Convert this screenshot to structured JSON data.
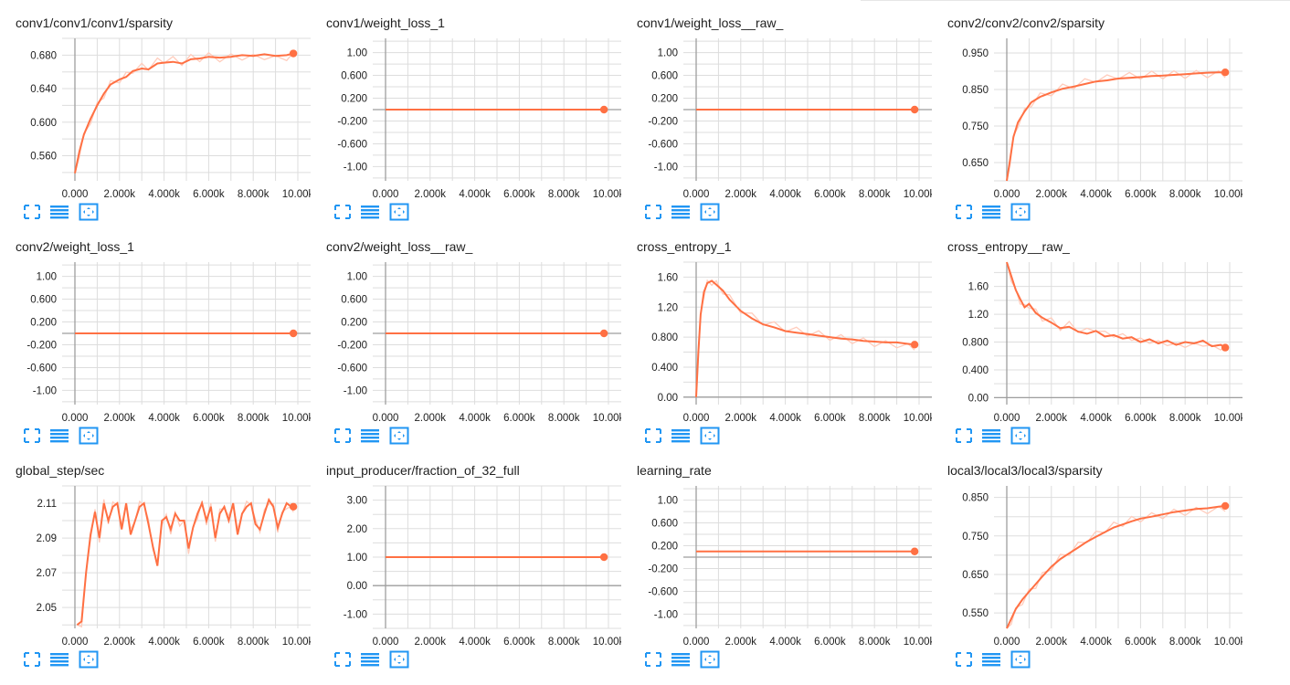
{
  "colors": {
    "accent": "#ff7043",
    "smoothed": "#ff7043",
    "raw": "#ffccbc",
    "grid": "#dddddd",
    "axis": "#9e9e9e",
    "icon": "#2196f3"
  },
  "toolbar_icons": [
    "expand-icon",
    "data-table-icon",
    "fit-domain-icon"
  ],
  "x_ticks": [
    "0.000",
    "2.000k",
    "4.000k",
    "6.000k",
    "8.000k",
    "10.00k"
  ],
  "cards": [
    {
      "title": "conv1/conv1/conv1/sparsity",
      "chart_data": {
        "type": "line",
        "xlim": [
          0,
          10000
        ],
        "ylim": [
          0.53,
          0.7
        ],
        "y_ticks": [
          0.56,
          0.6,
          0.64,
          0.68
        ],
        "y_labels": [
          "0.560",
          "0.600",
          "0.640",
          "0.680"
        ],
        "x_ticks": [
          0,
          2000,
          4000,
          6000,
          8000,
          10000
        ],
        "series": [
          {
            "x": [
              0,
              200,
              400,
              700,
              1000,
              1300,
              1600,
              2000,
              2300,
              2600,
              3000,
              3300,
              3700,
              4000,
              4400,
              4800,
              5200,
              5600,
              6000,
              6500,
              7000,
              7500,
              8000,
              8500,
              9000,
              9500,
              9800
            ],
            "y": [
              0.539,
              0.565,
              0.585,
              0.604,
              0.62,
              0.634,
              0.645,
              0.651,
              0.654,
              0.661,
              0.664,
              0.663,
              0.67,
              0.671,
              0.672,
              0.67,
              0.675,
              0.676,
              0.678,
              0.677,
              0.678,
              0.68,
              0.679,
              0.681,
              0.679,
              0.68,
              0.682
            ]
          }
        ]
      }
    },
    {
      "title": "conv1/weight_loss_1",
      "chart_data": {
        "type": "line",
        "xlim": [
          0,
          10000
        ],
        "ylim": [
          -1.25,
          1.25
        ],
        "y_ticks": [
          1.0,
          0.6,
          0.2,
          -0.2,
          -0.6,
          -1.0
        ],
        "y_labels": [
          "1.00",
          "0.600",
          "0.200",
          "-0.200",
          "-0.600",
          "-1.00"
        ],
        "x_ticks": [
          0,
          2000,
          4000,
          6000,
          8000,
          10000
        ],
        "series": [
          {
            "x": [
              0,
              9800
            ],
            "y": [
              0,
              0
            ]
          }
        ]
      }
    },
    {
      "title": "conv1/weight_loss__raw_",
      "chart_data": {
        "type": "line",
        "xlim": [
          0,
          10000
        ],
        "ylim": [
          -1.25,
          1.25
        ],
        "y_ticks": [
          1.0,
          0.6,
          0.2,
          -0.2,
          -0.6,
          -1.0
        ],
        "y_labels": [
          "1.00",
          "0.600",
          "0.200",
          "-0.200",
          "-0.600",
          "-1.00"
        ],
        "x_ticks": [
          0,
          2000,
          4000,
          6000,
          8000,
          10000
        ],
        "series": [
          {
            "x": [
              0,
              9800
            ],
            "y": [
              0,
              0
            ]
          }
        ]
      }
    },
    {
      "title": "conv2/conv2/conv2/sparsity",
      "chart_data": {
        "type": "line",
        "xlim": [
          0,
          10000
        ],
        "ylim": [
          0.6,
          0.99
        ],
        "y_ticks": [
          0.65,
          0.75,
          0.85,
          0.95
        ],
        "y_labels": [
          "0.650",
          "0.750",
          "0.850",
          "0.950"
        ],
        "x_ticks": [
          0,
          2000,
          4000,
          6000,
          8000,
          10000
        ],
        "series": [
          {
            "x": [
              0,
              150,
              300,
              500,
              800,
              1100,
              1500,
              2000,
              2500,
              3000,
              3500,
              4000,
              4500,
              5000,
              5500,
              6000,
              6500,
              7000,
              7500,
              8000,
              8500,
              9000,
              9500,
              9800
            ],
            "y": [
              0.6,
              0.66,
              0.72,
              0.76,
              0.79,
              0.815,
              0.83,
              0.842,
              0.852,
              0.858,
              0.865,
              0.872,
              0.875,
              0.88,
              0.882,
              0.884,
              0.887,
              0.888,
              0.89,
              0.892,
              0.894,
              0.896,
              0.897,
              0.897
            ]
          }
        ]
      }
    },
    {
      "title": "conv2/weight_loss_1",
      "chart_data": {
        "type": "line",
        "xlim": [
          0,
          10000
        ],
        "ylim": [
          -1.25,
          1.25
        ],
        "y_ticks": [
          1.0,
          0.6,
          0.2,
          -0.2,
          -0.6,
          -1.0
        ],
        "y_labels": [
          "1.00",
          "0.600",
          "0.200",
          "-0.200",
          "-0.600",
          "-1.00"
        ],
        "x_ticks": [
          0,
          2000,
          4000,
          6000,
          8000,
          10000
        ],
        "series": [
          {
            "x": [
              0,
              9800
            ],
            "y": [
              0,
              0
            ]
          }
        ]
      }
    },
    {
      "title": "conv2/weight_loss__raw_",
      "chart_data": {
        "type": "line",
        "xlim": [
          0,
          10000
        ],
        "ylim": [
          -1.25,
          1.25
        ],
        "y_ticks": [
          1.0,
          0.6,
          0.2,
          -0.2,
          -0.6,
          -1.0
        ],
        "y_labels": [
          "1.00",
          "0.600",
          "0.200",
          "-0.200",
          "-0.600",
          "-1.00"
        ],
        "x_ticks": [
          0,
          2000,
          4000,
          6000,
          8000,
          10000
        ],
        "series": [
          {
            "x": [
              0,
              9800
            ],
            "y": [
              0,
              0
            ]
          }
        ]
      }
    },
    {
      "title": "cross_entropy_1",
      "chart_data": {
        "type": "line",
        "xlim": [
          0,
          10000
        ],
        "ylim": [
          -0.1,
          1.8
        ],
        "y_ticks": [
          0.0,
          0.4,
          0.8,
          1.2,
          1.6
        ],
        "y_labels": [
          "0.00",
          "0.400",
          "0.800",
          "1.20",
          "1.60"
        ],
        "x_ticks": [
          0,
          2000,
          4000,
          6000,
          8000,
          10000
        ],
        "series": [
          {
            "x": [
              0,
              100,
              200,
              350,
              500,
              700,
              900,
              1200,
              1500,
              2000,
              2500,
              3000,
              3500,
              4000,
              4500,
              5000,
              5500,
              6000,
              6500,
              7000,
              7500,
              8000,
              8500,
              9000,
              9500,
              9800
            ],
            "y": [
              0.0,
              0.6,
              1.1,
              1.4,
              1.52,
              1.55,
              1.5,
              1.42,
              1.3,
              1.15,
              1.05,
              0.97,
              0.93,
              0.88,
              0.86,
              0.84,
              0.82,
              0.8,
              0.78,
              0.77,
              0.75,
              0.74,
              0.73,
              0.73,
              0.71,
              0.7
            ]
          }
        ]
      }
    },
    {
      "title": "cross_entropy__raw_",
      "chart_data": {
        "type": "line",
        "xlim": [
          0,
          10000
        ],
        "ylim": [
          -0.1,
          1.95
        ],
        "y_ticks": [
          0.0,
          0.4,
          0.8,
          1.2,
          1.6
        ],
        "y_labels": [
          "0.00",
          "0.400",
          "0.800",
          "1.20",
          "1.60"
        ],
        "x_ticks": [
          0,
          2000,
          4000,
          6000,
          8000,
          10000
        ],
        "series": [
          {
            "x": [
              0,
              200,
              400,
              600,
              800,
              1000,
              1300,
              1600,
              2000,
              2400,
              2800,
              3200,
              3600,
              4000,
              4400,
              4800,
              5200,
              5600,
              6000,
              6400,
              6800,
              7200,
              7600,
              8000,
              8400,
              8800,
              9200,
              9600,
              9800
            ],
            "y": [
              1.95,
              1.75,
              1.55,
              1.42,
              1.3,
              1.35,
              1.22,
              1.15,
              1.08,
              1.0,
              1.02,
              0.95,
              0.92,
              0.96,
              0.88,
              0.9,
              0.85,
              0.87,
              0.8,
              0.84,
              0.78,
              0.82,
              0.76,
              0.8,
              0.78,
              0.82,
              0.74,
              0.76,
              0.72
            ]
          }
        ]
      }
    },
    {
      "title": "global_step/sec",
      "chart_data": {
        "type": "line",
        "xlim": [
          0,
          10000
        ],
        "ylim": [
          2.038,
          2.12
        ],
        "y_ticks": [
          2.05,
          2.07,
          2.09,
          2.11
        ],
        "y_labels": [
          "2.05",
          "2.07",
          "2.09",
          "2.11"
        ],
        "x_ticks": [
          0,
          2000,
          4000,
          6000,
          8000,
          10000
        ],
        "series": [
          {
            "x": [
              100,
              300,
              500,
              700,
              900,
              1100,
              1300,
              1500,
              1700,
              1900,
              2100,
              2300,
              2500,
              2700,
              2900,
              3100,
              3300,
              3500,
              3700,
              3900,
              4100,
              4300,
              4500,
              4700,
              4900,
              5100,
              5300,
              5500,
              5700,
              5900,
              6100,
              6300,
              6500,
              6700,
              6900,
              7100,
              7300,
              7500,
              7700,
              7900,
              8100,
              8300,
              8500,
              8700,
              8900,
              9100,
              9300,
              9500,
              9700,
              9800
            ],
            "y": [
              2.04,
              2.042,
              2.07,
              2.092,
              2.105,
              2.09,
              2.11,
              2.1,
              2.108,
              2.11,
              2.095,
              2.11,
              2.092,
              2.1,
              2.108,
              2.11,
              2.098,
              2.085,
              2.074,
              2.1,
              2.102,
              2.095,
              2.104,
              2.1,
              2.1,
              2.084,
              2.096,
              2.104,
              2.11,
              2.1,
              2.108,
              2.09,
              2.104,
              2.108,
              2.1,
              2.11,
              2.092,
              2.104,
              2.108,
              2.11,
              2.098,
              2.095,
              2.104,
              2.112,
              2.108,
              2.096,
              2.104,
              2.11,
              2.108,
              2.108
            ]
          }
        ]
      }
    },
    {
      "title": "input_producer/fraction_of_32_full",
      "chart_data": {
        "type": "line",
        "xlim": [
          0,
          10000
        ],
        "ylim": [
          -1.5,
          3.5
        ],
        "y_ticks": [
          3.0,
          2.0,
          1.0,
          0.0,
          -1.0
        ],
        "y_labels": [
          "3.00",
          "2.00",
          "1.00",
          "0.00",
          "-1.00"
        ],
        "x_ticks": [
          0,
          2000,
          4000,
          6000,
          8000,
          10000
        ],
        "series": [
          {
            "x": [
              0,
              9800
            ],
            "y": [
              1.0,
              1.0
            ]
          }
        ]
      }
    },
    {
      "title": "learning_rate",
      "chart_data": {
        "type": "line",
        "xlim": [
          0,
          10000
        ],
        "ylim": [
          -1.25,
          1.25
        ],
        "y_ticks": [
          1.0,
          0.6,
          0.2,
          -0.2,
          -0.6,
          -1.0
        ],
        "y_labels": [
          "1.00",
          "0.600",
          "0.200",
          "-0.200",
          "-0.600",
          "-1.00"
        ],
        "x_ticks": [
          0,
          2000,
          4000,
          6000,
          8000,
          10000
        ],
        "series": [
          {
            "x": [
              0,
              9800
            ],
            "y": [
              0.1,
              0.1
            ]
          }
        ]
      }
    },
    {
      "title": "local3/local3/local3/sparsity",
      "chart_data": {
        "type": "line",
        "xlim": [
          0,
          10000
        ],
        "ylim": [
          0.51,
          0.88
        ],
        "y_ticks": [
          0.55,
          0.65,
          0.75,
          0.85
        ],
        "y_labels": [
          "0.550",
          "0.650",
          "0.750",
          "0.850"
        ],
        "x_ticks": [
          0,
          2000,
          4000,
          6000,
          8000,
          10000
        ],
        "series": [
          {
            "x": [
              0,
              200,
              400,
              700,
              1000,
              1300,
              1600,
              2000,
              2400,
              2800,
              3200,
              3600,
              4000,
              4400,
              4800,
              5200,
              5600,
              6000,
              6500,
              7000,
              7500,
              8000,
              8500,
              9000,
              9500,
              9800
            ],
            "y": [
              0.51,
              0.535,
              0.56,
              0.585,
              0.605,
              0.625,
              0.645,
              0.67,
              0.69,
              0.705,
              0.72,
              0.735,
              0.748,
              0.76,
              0.772,
              0.78,
              0.788,
              0.795,
              0.8,
              0.806,
              0.812,
              0.816,
              0.82,
              0.822,
              0.826,
              0.828
            ]
          }
        ]
      }
    }
  ]
}
